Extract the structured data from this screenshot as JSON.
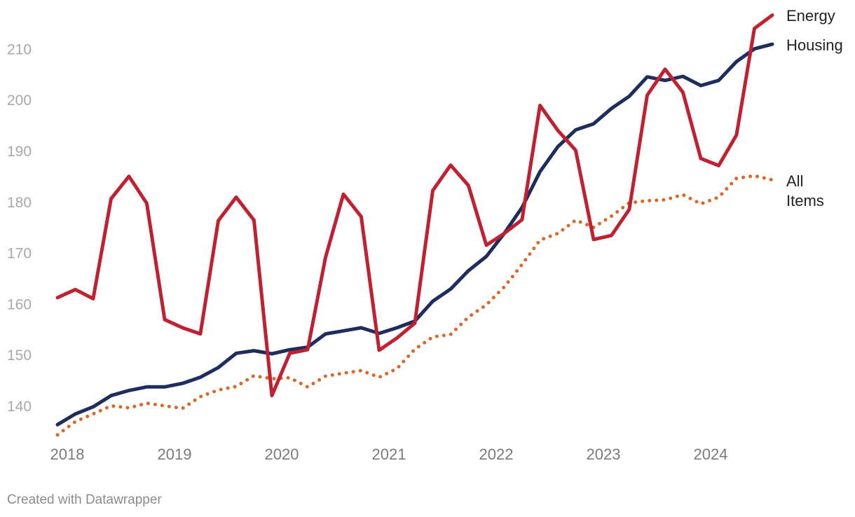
{
  "footer": {
    "credit": "Created with Datawrapper"
  },
  "chart_data": {
    "type": "line",
    "title": "",
    "xlabel": "",
    "ylabel": "",
    "x_ticks": [
      "2018",
      "2019",
      "2020",
      "2021",
      "2022",
      "2023",
      "2024"
    ],
    "y_ticks": [
      140,
      150,
      160,
      170,
      180,
      190,
      200,
      210
    ],
    "ylim": [
      133,
      218
    ],
    "xlim": [
      2018,
      2024.667
    ],
    "grid": false,
    "legend": "direct labels at right end of lines",
    "x": [
      2018.0,
      2018.167,
      2018.333,
      2018.5,
      2018.667,
      2018.833,
      2019.0,
      2019.167,
      2019.333,
      2019.5,
      2019.667,
      2019.833,
      2020.0,
      2020.167,
      2020.333,
      2020.5,
      2020.667,
      2020.833,
      2021.0,
      2021.167,
      2021.333,
      2021.5,
      2021.667,
      2021.833,
      2022.0,
      2022.167,
      2022.333,
      2022.5,
      2022.667,
      2022.833,
      2023.0,
      2023.167,
      2023.333,
      2023.5,
      2023.667,
      2023.833,
      2024.0,
      2024.167,
      2024.333,
      2024.5,
      2024.667
    ],
    "series": [
      {
        "name": "Energy",
        "label_lines": [
          "Energy"
        ],
        "color": "#c0202f",
        "style": "solid",
        "values": [
          161.3,
          162.9,
          161.1,
          180.7,
          185.1,
          179.8,
          157.0,
          155.4,
          154.2,
          176.4,
          181.0,
          176.5,
          142.1,
          150.4,
          151.1,
          169.2,
          181.6,
          177.2,
          151.0,
          153.4,
          156.3,
          182.3,
          187.3,
          183.3,
          171.6,
          173.9,
          176.6,
          199.0,
          194.1,
          190.2,
          172.7,
          173.5,
          178.6,
          201.0,
          206.1,
          201.6,
          188.6,
          187.2,
          193.2,
          214.1,
          216.7
        ]
      },
      {
        "name": "Housing",
        "label_lines": [
          "Housing"
        ],
        "color": "#1f2d5e",
        "style": "solid",
        "values": [
          136.4,
          138.5,
          139.9,
          142.1,
          143.1,
          143.8,
          143.8,
          144.5,
          145.7,
          147.6,
          150.4,
          150.9,
          150.3,
          151.1,
          151.6,
          154.2,
          154.8,
          155.4,
          154.3,
          155.4,
          156.7,
          160.6,
          163.0,
          166.6,
          169.4,
          173.9,
          179.0,
          186.0,
          190.9,
          194.2,
          195.4,
          198.4,
          200.8,
          204.6,
          203.9,
          204.7,
          202.9,
          203.9,
          207.6,
          210.1,
          211.0
        ]
      },
      {
        "name": "All Items",
        "label_lines": [
          "All",
          "Items"
        ],
        "color": "#d8692a",
        "style": "dotted",
        "values": [
          134.4,
          137.0,
          138.5,
          140.1,
          139.7,
          140.6,
          140.1,
          139.6,
          141.9,
          143.2,
          143.9,
          146.0,
          145.4,
          145.6,
          143.8,
          145.9,
          146.5,
          147.0,
          145.7,
          147.4,
          151.2,
          153.6,
          154.1,
          157.5,
          159.9,
          163.4,
          167.8,
          172.6,
          173.9,
          176.5,
          175.1,
          177.3,
          179.9,
          180.3,
          180.5,
          181.5,
          179.7,
          181.0,
          184.7,
          185.2,
          184.4
        ]
      }
    ]
  }
}
